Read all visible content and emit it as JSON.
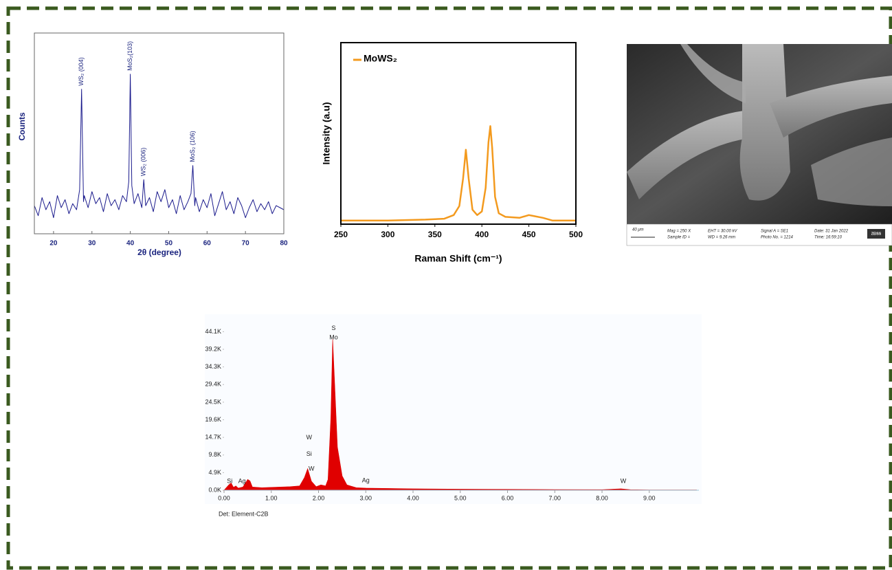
{
  "chart_data": [
    {
      "type": "line",
      "x_label": "2θ (degree)",
      "y_label": "Counts",
      "xlim": [
        15,
        80
      ],
      "xticks": [
        20,
        30,
        40,
        50,
        60,
        70,
        80
      ],
      "ylim": [
        0,
        100
      ],
      "x": [
        15,
        16,
        17,
        18,
        19,
        20,
        21,
        22,
        23,
        24,
        25,
        26,
        26.8,
        27.3,
        27.8,
        28,
        29,
        30,
        31,
        32,
        33,
        34,
        35,
        36,
        37,
        38,
        39,
        39.6,
        40,
        40.4,
        41,
        42,
        43,
        43.5,
        44,
        45,
        46,
        47,
        48,
        49,
        50,
        51,
        52,
        53,
        54,
        55,
        55.8,
        56.3,
        56.8,
        57,
        58,
        59,
        60,
        61,
        62,
        63,
        64,
        65,
        66,
        67,
        68,
        69,
        70,
        71,
        72,
        73,
        74,
        75,
        76,
        77,
        78,
        79,
        80
      ],
      "series": [
        {
          "color": "#1a1a8c",
          "values": [
            14,
            9,
            18,
            12,
            16,
            8,
            19,
            13,
            17,
            10,
            15,
            12,
            22,
            72,
            16,
            19,
            13,
            21,
            15,
            18,
            11,
            20,
            14,
            17,
            12,
            19,
            16,
            26,
            79.5,
            24,
            15,
            20,
            13,
            27,
            14,
            18,
            11,
            21,
            16,
            22,
            13,
            17,
            10,
            19,
            12,
            16,
            20,
            34,
            14,
            18,
            11,
            17,
            13,
            20,
            9,
            15,
            21,
            12,
            16,
            10,
            18,
            14,
            8,
            13,
            17,
            11,
            15,
            12,
            16,
            10,
            14,
            13,
            12
          ]
        }
      ],
      "annotations": [
        {
          "text": "WS₂ (004)",
          "x": 27.3
        },
        {
          "text": "MoS₂(103)",
          "x": 40
        },
        {
          "text": "WS₂ (006)",
          "x": 43.5
        },
        {
          "text": "MoS₂ (106)",
          "x": 56.3
        }
      ]
    },
    {
      "type": "line",
      "x_label": "Raman Shift (cm⁻¹)",
      "y_label": "Intensity (a.u)",
      "xlim": [
        250,
        500
      ],
      "xticks": [
        250,
        300,
        350,
        400,
        450,
        500
      ],
      "ylim": [
        0,
        100
      ],
      "legend": "top-left",
      "x": [
        250,
        300,
        340,
        360,
        370,
        376,
        380,
        383,
        386,
        390,
        395,
        400,
        404,
        407,
        409,
        411,
        414,
        418,
        425,
        440,
        450,
        455,
        465,
        475,
        500
      ],
      "series": [
        {
          "name": "MoWS₂",
          "color": "#f39a1e",
          "values": [
            2,
            2,
            2.5,
            3,
            5,
            10,
            25,
            41,
            25,
            8,
            5,
            7,
            20,
            45,
            54,
            42,
            15,
            6,
            4,
            3.5,
            5,
            4.5,
            3.5,
            2,
            2
          ]
        }
      ]
    },
    {
      "type": "area",
      "footer": "Det: Element-C2B",
      "xlim": [
        0,
        10.05
      ],
      "xticks": [
        {
          "value": 0,
          "label": "0.00"
        },
        {
          "value": 1,
          "label": "1.00"
        },
        {
          "value": 2,
          "label": "2.00"
        },
        {
          "value": 3,
          "label": "3.00"
        },
        {
          "value": 4,
          "label": "4.00"
        },
        {
          "value": 5,
          "label": "5.00"
        },
        {
          "value": 6,
          "label": "6.00"
        },
        {
          "value": 7,
          "label": "7.00"
        },
        {
          "value": 8,
          "label": "8.00"
        },
        {
          "value": 9,
          "label": "9.00"
        }
      ],
      "ylim": [
        0,
        48000
      ],
      "yticks": [
        {
          "value": 0,
          "label": "0.0K"
        },
        {
          "value": 4900,
          "label": "4.9K"
        },
        {
          "value": 9800,
          "label": "9.8K"
        },
        {
          "value": 14700,
          "label": "14.7K"
        },
        {
          "value": 19600,
          "label": "19.6K"
        },
        {
          "value": 24500,
          "label": "24.5K"
        },
        {
          "value": 29400,
          "label": "29.4K"
        },
        {
          "value": 34300,
          "label": "34.3K"
        },
        {
          "value": 39200,
          "label": "39.2K"
        },
        {
          "value": 44100,
          "label": "44.1K"
        }
      ],
      "x": [
        0,
        0.1,
        0.15,
        0.2,
        0.25,
        0.3,
        0.4,
        0.5,
        0.55,
        0.6,
        0.8,
        1.0,
        1.2,
        1.4,
        1.6,
        1.7,
        1.77,
        1.85,
        1.95,
        2.05,
        2.15,
        2.2,
        2.26,
        2.3,
        2.34,
        2.4,
        2.5,
        2.6,
        2.8,
        3.0,
        3.5,
        4,
        5,
        6,
        7,
        8,
        8.4,
        8.6,
        9,
        10
      ],
      "series": [
        {
          "color": "#e00000",
          "values": [
            0,
            1500,
            2000,
            800,
            1200,
            600,
            900,
            3000,
            2600,
            900,
            700,
            800,
            900,
            1000,
            1200,
            3500,
            6000,
            2500,
            1000,
            1500,
            1200,
            3000,
            20000,
            42000,
            30000,
            12000,
            4000,
            1500,
            700,
            600,
            500,
            400,
            300,
            250,
            200,
            150,
            400,
            150,
            100,
            80
          ]
        }
      ],
      "annotations": [
        {
          "text": "Si",
          "x": 0.12,
          "y": 2500
        },
        {
          "text": "Ag",
          "x": 0.38,
          "y": 2500
        },
        {
          "text": "W",
          "x": 1.8,
          "y": 14600
        },
        {
          "text": "Si",
          "x": 1.8,
          "y": 10000
        },
        {
          "text": "W",
          "x": 1.85,
          "y": 5900
        },
        {
          "text": "S",
          "x": 2.32,
          "y": 45000
        },
        {
          "text": "Mo",
          "x": 2.32,
          "y": 42400
        },
        {
          "text": "Ag",
          "x": 3.0,
          "y": 2700
        },
        {
          "text": "W",
          "x": 8.45,
          "y": 2500
        }
      ]
    }
  ],
  "sem_image": {
    "scale": "40 μm",
    "mag": "Mag =  250 X",
    "sample": "Sample ID =",
    "eht": "EHT = 30.00 kV",
    "wd": "WD = 9.26 mm",
    "signal": "Signal A = SE1",
    "photo": "Photo No. = 1214",
    "date": "Date: 31 Jan 2022",
    "time": "Time: 16:59:10",
    "brand": "ZEISS"
  }
}
